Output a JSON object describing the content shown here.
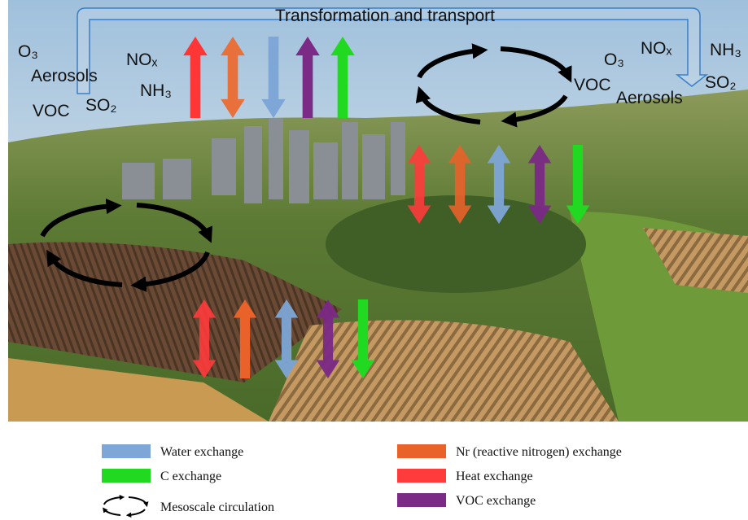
{
  "title": "Transformation and transport",
  "left_labels": [
    "O₃",
    "Aerosols",
    "VOC",
    "SO₂",
    "NOₓ",
    "NH₃"
  ],
  "right_labels": [
    "O₃",
    "NOₓ",
    "NH₃",
    "VOC",
    "Aerosols",
    "SO₂"
  ],
  "legend": [
    "Water exchange",
    "C exchange",
    "Mesoscale circulation",
    "Nr (reactive nitrogen) exchange",
    "Heat exchange",
    "VOC exchange"
  ]
}
